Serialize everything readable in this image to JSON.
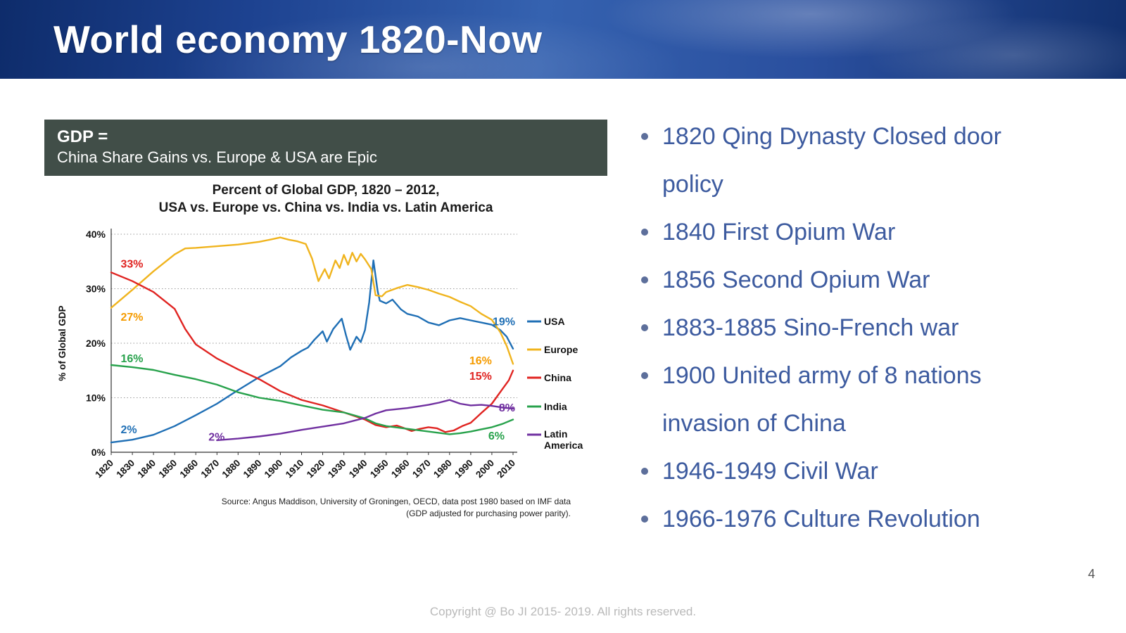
{
  "slide": {
    "title": "World economy 1820-Now",
    "page_number": "4",
    "footer": "Copyright @ Bo JI 2015- 2019. All rights reserved."
  },
  "bullets": [
    "1820 Qing Dynasty Closed door policy",
    "1840 First Opium War",
    "1856 Second Opium War",
    "1883-1885 Sino-French war",
    "1900 United army of 8 nations invasion of China",
    "1946-1949 Civil War",
    "1966-1976 Culture Revolution"
  ],
  "chart": {
    "header": {
      "line1": "GDP =",
      "line2": "China Share Gains vs. Europe & USA are Epic"
    },
    "title": {
      "line1": "Percent of Global GDP, 1820 – 2012,",
      "line2": "USA vs. Europe vs. China vs. India vs. Latin America"
    },
    "source": {
      "line1": "Source: Angus Maddison, University of Groningen, OECD, data post 1980 based on IMF data",
      "line2": "(GDP adjusted for purchasing power parity)."
    }
  },
  "colors": {
    "banner_blue": "#1d4290",
    "bullet_text": "#3d5b9f",
    "chart_header_bg": "#414e48"
  },
  "chart_data": {
    "type": "line",
    "title": "Percent of Global GDP, 1820 – 2012, USA vs. Europe vs. China vs. India vs. Latin America",
    "xlabel": "",
    "ylabel": "% of Global GDP",
    "x_range": [
      1820,
      2012
    ],
    "y_range": [
      0,
      40
    ],
    "x_ticks": [
      1820,
      1830,
      1840,
      1850,
      1860,
      1870,
      1880,
      1890,
      1900,
      1910,
      1920,
      1930,
      1940,
      1950,
      1960,
      1970,
      1980,
      1990,
      2000,
      2010
    ],
    "y_ticks": [
      0,
      10,
      20,
      30,
      40
    ],
    "y_tick_suffix": "%",
    "grid": "horizontal-dotted",
    "legend_position": "right",
    "series": [
      {
        "name": "USA",
        "color": "#1f6fb5",
        "points": [
          [
            1820,
            1.8
          ],
          [
            1830,
            2.3
          ],
          [
            1840,
            3.2
          ],
          [
            1850,
            4.8
          ],
          [
            1860,
            6.8
          ],
          [
            1870,
            8.9
          ],
          [
            1880,
            11.4
          ],
          [
            1890,
            13.8
          ],
          [
            1900,
            15.8
          ],
          [
            1905,
            17.4
          ],
          [
            1910,
            18.6
          ],
          [
            1913,
            19.2
          ],
          [
            1916,
            20.6
          ],
          [
            1920,
            22.2
          ],
          [
            1922,
            20.3
          ],
          [
            1925,
            22.6
          ],
          [
            1929,
            24.5
          ],
          [
            1931,
            21.5
          ],
          [
            1933,
            18.8
          ],
          [
            1936,
            21.2
          ],
          [
            1938,
            20.2
          ],
          [
            1940,
            22.4
          ],
          [
            1942,
            27.5
          ],
          [
            1944,
            35.2
          ],
          [
            1946,
            29.5
          ],
          [
            1947,
            27.8
          ],
          [
            1950,
            27.3
          ],
          [
            1953,
            28
          ],
          [
            1957,
            26.2
          ],
          [
            1960,
            25.4
          ],
          [
            1965,
            24.9
          ],
          [
            1970,
            23.8
          ],
          [
            1975,
            23.3
          ],
          [
            1980,
            24.2
          ],
          [
            1985,
            24.6
          ],
          [
            1990,
            24.2
          ],
          [
            1995,
            23.8
          ],
          [
            2000,
            23.4
          ],
          [
            2004,
            22.4
          ],
          [
            2007,
            21.2
          ],
          [
            2010,
            19
          ]
        ]
      },
      {
        "name": "Europe",
        "color": "#f0b41e",
        "points": [
          [
            1820,
            26.5
          ],
          [
            1830,
            29.8
          ],
          [
            1840,
            33.2
          ],
          [
            1850,
            36.3
          ],
          [
            1855,
            37.4
          ],
          [
            1860,
            37.5
          ],
          [
            1870,
            37.8
          ],
          [
            1880,
            38.1
          ],
          [
            1890,
            38.6
          ],
          [
            1895,
            39
          ],
          [
            1900,
            39.4
          ],
          [
            1904,
            39
          ],
          [
            1908,
            38.7
          ],
          [
            1912,
            38.2
          ],
          [
            1915,
            35.5
          ],
          [
            1918,
            31.4
          ],
          [
            1921,
            33.6
          ],
          [
            1923,
            31.9
          ],
          [
            1926,
            35.2
          ],
          [
            1928,
            33.8
          ],
          [
            1930,
            36.2
          ],
          [
            1932,
            34.4
          ],
          [
            1934,
            36.6
          ],
          [
            1936,
            35
          ],
          [
            1938,
            36.4
          ],
          [
            1940,
            35.4
          ],
          [
            1943,
            33.6
          ],
          [
            1945,
            28.8
          ],
          [
            1948,
            28.6
          ],
          [
            1950,
            29.4
          ],
          [
            1955,
            30.1
          ],
          [
            1960,
            30.7
          ],
          [
            1965,
            30.3
          ],
          [
            1970,
            29.8
          ],
          [
            1975,
            29.1
          ],
          [
            1980,
            28.5
          ],
          [
            1985,
            27.6
          ],
          [
            1990,
            26.8
          ],
          [
            1995,
            25.4
          ],
          [
            2000,
            24.3
          ],
          [
            2004,
            22
          ],
          [
            2007,
            19.5
          ],
          [
            2010,
            16.2
          ]
        ]
      },
      {
        "name": "China",
        "color": "#e02421",
        "points": [
          [
            1820,
            33
          ],
          [
            1830,
            31.4
          ],
          [
            1840,
            29.4
          ],
          [
            1850,
            26.3
          ],
          [
            1855,
            22.6
          ],
          [
            1860,
            19.8
          ],
          [
            1870,
            17.2
          ],
          [
            1880,
            15.2
          ],
          [
            1890,
            13.4
          ],
          [
            1900,
            11.2
          ],
          [
            1910,
            9.6
          ],
          [
            1920,
            8.6
          ],
          [
            1930,
            7.3
          ],
          [
            1940,
            6
          ],
          [
            1945,
            5
          ],
          [
            1950,
            4.6
          ],
          [
            1955,
            4.9
          ],
          [
            1958,
            4.5
          ],
          [
            1962,
            3.9
          ],
          [
            1966,
            4.3
          ],
          [
            1970,
            4.6
          ],
          [
            1974,
            4.4
          ],
          [
            1978,
            3.7
          ],
          [
            1982,
            4
          ],
          [
            1986,
            4.8
          ],
          [
            1990,
            5.4
          ],
          [
            1995,
            7.2
          ],
          [
            2000,
            8.9
          ],
          [
            2005,
            11.6
          ],
          [
            2008,
            13.2
          ],
          [
            2010,
            15
          ]
        ]
      },
      {
        "name": "India",
        "color": "#28a24c",
        "points": [
          [
            1820,
            16
          ],
          [
            1830,
            15.6
          ],
          [
            1840,
            15.1
          ],
          [
            1850,
            14.2
          ],
          [
            1860,
            13.4
          ],
          [
            1870,
            12.4
          ],
          [
            1880,
            11
          ],
          [
            1885,
            10.5
          ],
          [
            1890,
            10
          ],
          [
            1900,
            9.4
          ],
          [
            1910,
            8.6
          ],
          [
            1920,
            7.8
          ],
          [
            1930,
            7.3
          ],
          [
            1940,
            6.2
          ],
          [
            1945,
            5.3
          ],
          [
            1950,
            4.8
          ],
          [
            1960,
            4.3
          ],
          [
            1970,
            3.8
          ],
          [
            1980,
            3.3
          ],
          [
            1985,
            3.5
          ],
          [
            1990,
            3.8
          ],
          [
            1995,
            4.2
          ],
          [
            2000,
            4.6
          ],
          [
            2005,
            5.2
          ],
          [
            2010,
            6
          ]
        ]
      },
      {
        "name": "Latin America",
        "color": "#7030a0",
        "points": [
          [
            1870,
            2.2
          ],
          [
            1880,
            2.5
          ],
          [
            1890,
            2.9
          ],
          [
            1900,
            3.4
          ],
          [
            1910,
            4.1
          ],
          [
            1920,
            4.7
          ],
          [
            1930,
            5.3
          ],
          [
            1940,
            6.3
          ],
          [
            1945,
            7.1
          ],
          [
            1950,
            7.7
          ],
          [
            1960,
            8.1
          ],
          [
            1965,
            8.4
          ],
          [
            1970,
            8.7
          ],
          [
            1975,
            9.1
          ],
          [
            1980,
            9.6
          ],
          [
            1985,
            8.9
          ],
          [
            1990,
            8.6
          ],
          [
            1995,
            8.7
          ],
          [
            2000,
            8.5
          ],
          [
            2005,
            8.2
          ],
          [
            2010,
            8
          ]
        ]
      }
    ],
    "annotations": [
      {
        "text": "33%",
        "color": "#e02421",
        "year": 1824.5,
        "value": 33.9,
        "anchor": "start"
      },
      {
        "text": "27%",
        "color": "#f59b00",
        "year": 1824.5,
        "value": 24.1,
        "anchor": "start"
      },
      {
        "text": "16%",
        "color": "#28a24c",
        "year": 1824.5,
        "value": 16.5,
        "anchor": "start"
      },
      {
        "text": "2%",
        "color": "#1f6fb5",
        "year": 1824.5,
        "value": 3.5,
        "anchor": "start"
      },
      {
        "text": "2%",
        "color": "#7030a0",
        "year": 1866,
        "value": 2.1,
        "anchor": "start"
      },
      {
        "text": "19%",
        "color": "#1f6fb5",
        "year": 2011,
        "value": 23.3,
        "anchor": "end"
      },
      {
        "text": "16%",
        "color": "#f59b00",
        "year": 2000,
        "value": 16.1,
        "anchor": "end"
      },
      {
        "text": "15%",
        "color": "#e02421",
        "year": 2000,
        "value": 13.3,
        "anchor": "end"
      },
      {
        "text": "8%",
        "color": "#7030a0",
        "year": 2011,
        "value": 7.5,
        "anchor": "end"
      },
      {
        "text": "6%",
        "color": "#28a24c",
        "year": 2006,
        "value": 2.3,
        "anchor": "end"
      }
    ]
  }
}
